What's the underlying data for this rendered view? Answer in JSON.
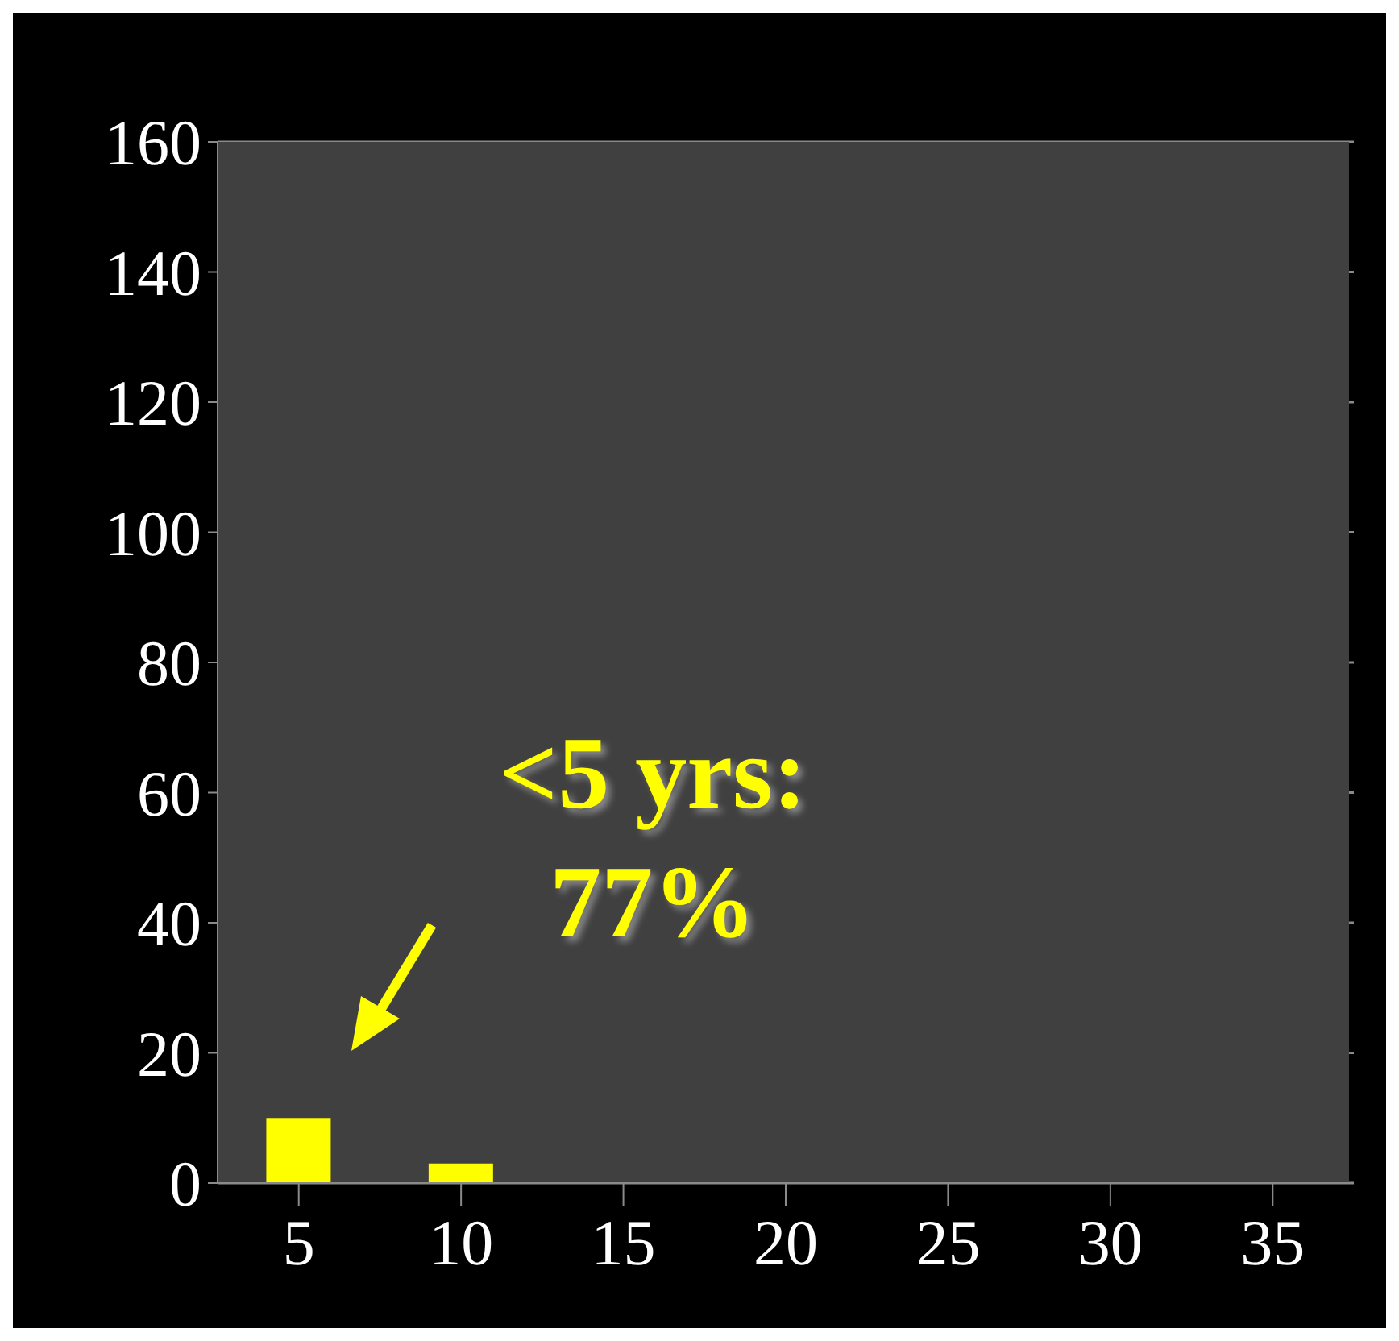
{
  "chart_data": {
    "type": "bar",
    "categories": [
      "5",
      "10",
      "15",
      "20",
      "25",
      "30",
      "35"
    ],
    "values": [
      10,
      3,
      0,
      0,
      0,
      0,
      0
    ],
    "color": "#ffff00",
    "ylim": [
      0,
      160
    ],
    "yticks": [
      0,
      20,
      40,
      60,
      80,
      100,
      120,
      140,
      160
    ],
    "grid": "y",
    "annotations": [
      {
        "text": "<5 yrs: 77%",
        "x": "5",
        "y": 10
      }
    ]
  }
}
